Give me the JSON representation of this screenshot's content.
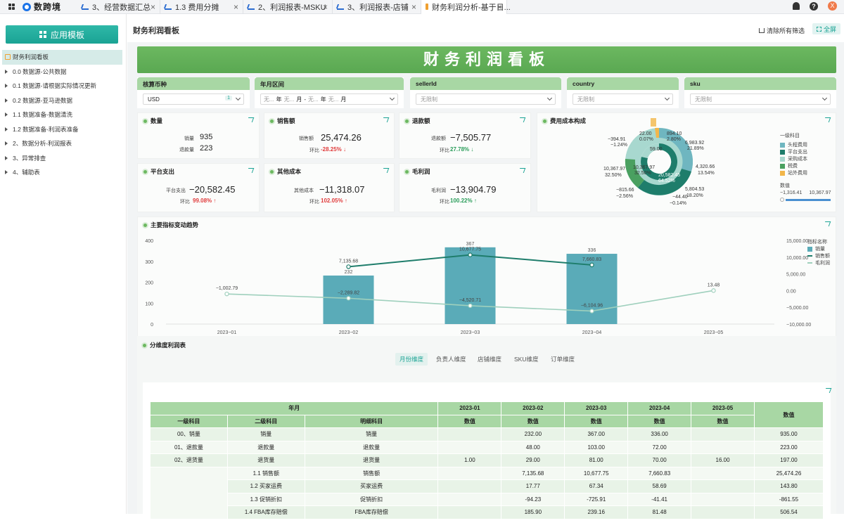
{
  "tabs": [
    {
      "label": "3、经营数据汇总",
      "icon": "line-chart-icon"
    },
    {
      "label": "1.3 费用分摊",
      "icon": "line-chart-icon"
    },
    {
      "label": "2、利润报表-MSKU",
      "icon": "line-chart-icon"
    },
    {
      "label": "3、利润报表-店铺",
      "icon": "line-chart-icon"
    },
    {
      "label": "财务利润分析-基于日...",
      "icon": "dashboard-icon"
    }
  ],
  "brand": "数跨境",
  "avatar_letter": "X",
  "sidebar": {
    "template_button": "应用模板",
    "items": [
      {
        "label": "财务利润看板"
      },
      {
        "label": "0.0 数据源-公共数据"
      },
      {
        "label": "0.1 数据源-请根据实际情况更新"
      },
      {
        "label": "0.2 数据源-亚马逊数据"
      },
      {
        "label": "1.1 数据准备-数据清洗"
      },
      {
        "label": "1.2 数据准备-利润表准备"
      },
      {
        "label": "2、数据分析-利润报表"
      },
      {
        "label": "3、异常排查"
      },
      {
        "label": "4、辅助表"
      }
    ]
  },
  "header": {
    "title": "财务利润看板",
    "clear_filters": "清除所有筛选",
    "fullscreen": "全屏"
  },
  "banner": "财务利润看板",
  "filters": {
    "currency": {
      "label": "核算币种",
      "value": "USD",
      "count": "1"
    },
    "month_range": {
      "label": "年月区间",
      "p1": "无...",
      "y1": "年",
      "p2": "无...",
      "m1": "月",
      "sep": "-",
      "p3": "无...",
      "y2": "年",
      "p4": "无...",
      "m2": "月"
    },
    "sellerid": {
      "label": "sellerId",
      "placeholder": "无限制"
    },
    "country": {
      "label": "country",
      "placeholder": "无限制"
    },
    "sku": {
      "label": "sku",
      "placeholder": "无限制"
    }
  },
  "kpi": {
    "qty": {
      "title": "数量",
      "l1": "销量",
      "v1": "935",
      "l2": "退款量",
      "v2": "223"
    },
    "sales": {
      "title": "销售额",
      "label": "销售额",
      "value": "25,474.26",
      "chg_label": "环比",
      "chg": "-28.25%"
    },
    "refund": {
      "title": "退款额",
      "label": "退款额",
      "value": "−7,505.77",
      "chg_label": "环比",
      "chg": "27.78%"
    },
    "platform": {
      "title": "平台支出",
      "label": "平台支出",
      "value": "−20,582.45",
      "chg_label": "环比",
      "chg": "99.08%"
    },
    "other": {
      "title": "其他成本",
      "label": "其他成本",
      "value": "−11,318.07",
      "chg_label": "环比",
      "chg": "102.05%"
    },
    "gross": {
      "title": "毛利润",
      "label": "毛利润",
      "value": "−13,904.79",
      "chg_label": "环比",
      "chg": "100.22%"
    }
  },
  "cost_chart": {
    "title": "费用成本构成",
    "legend_title": "一级科目",
    "legend": [
      {
        "name": "头程费用",
        "color": "#6fb6c0"
      },
      {
        "name": "平台支出",
        "color": "#1e7d6b"
      },
      {
        "name": "采购成本",
        "color": "#a8d8cf"
      },
      {
        "name": "税费",
        "color": "#4aa060"
      },
      {
        "name": "站外费用",
        "color": "#f2b64a"
      }
    ],
    "value_label": "数值",
    "range_min": "−1,316.41",
    "range_max": "10,367.97",
    "labels": [
      {
        "v": "22.00",
        "p": "0.07%"
      },
      {
        "v": "894.10",
        "p": "2.80%"
      },
      {
        "v": "−394.91",
        "p": "−1.24%"
      },
      {
        "v": "6,983.92",
        "p": "21.89%"
      },
      {
        "v": "4,320.66",
        "p": "13.54%"
      },
      {
        "v": "10,367.97",
        "p": "32.50%"
      },
      {
        "v": "10,367.97",
        "p": "32.50%"
      },
      {
        "v": "20,582.45",
        "p": "64.52%"
      },
      {
        "v": "5,804.53",
        "p": "18.20%"
      },
      {
        "v": "−815.66",
        "p": "−2.56%"
      },
      {
        "v": "−44.40",
        "p": "−0.14%"
      },
      {
        "v": "59.00",
        "p": ""
      }
    ]
  },
  "chart_data": {
    "type": "bar",
    "title": "主要指标变动趋势",
    "categories": [
      "2023−01",
      "2023−02",
      "2023−03",
      "2023−04",
      "2023−05"
    ],
    "legend_title": "指标名称",
    "y_left_ticks": [
      "400",
      "300",
      "200",
      "100",
      "0"
    ],
    "y_right_ticks": [
      "15,000.00",
      "10,000.00",
      "5,000.00",
      "0.00",
      "−5,000.00",
      "−10,000.00"
    ],
    "ylim_left": [
      0,
      400
    ],
    "ylim_right": [
      -10000,
      15000
    ],
    "series": [
      {
        "name": "销量",
        "type": "bar",
        "axis": "left",
        "color": "#5aabb8",
        "values": [
          null,
          232,
          367,
          336,
          null
        ],
        "labels": [
          "",
          "232",
          "367",
          "336",
          ""
        ]
      },
      {
        "name": "销售额",
        "type": "line",
        "axis": "right",
        "color": "#1e7d6b",
        "values": [
          null,
          7135.68,
          10677.75,
          7660.83,
          null
        ],
        "labels": [
          "",
          "7,135.68",
          "10,677.75",
          "7,660.83",
          ""
        ]
      },
      {
        "name": "毛利润",
        "type": "line",
        "axis": "right",
        "color": "#9fd0bd",
        "values": [
          -1002.79,
          -2289.82,
          -4520.71,
          -6104.96,
          13.48
        ],
        "labels": [
          "−1,002.79",
          "−2,289.82",
          "−4,520.71",
          "−6,104.96",
          "13.48"
        ]
      }
    ]
  },
  "dim_section": {
    "title": "分维度利润表",
    "tabs": [
      "月份维度",
      "负责人维度",
      "店铺维度",
      "SKU维度",
      "订单维度"
    ]
  },
  "table": {
    "h_month": "年月",
    "h_l1": "一级科目",
    "h_l2": "二级科目",
    "h_detail": "明细科目",
    "months": [
      "2023-01",
      "2023-02",
      "2023-03",
      "2023-04",
      "2023-05"
    ],
    "value": "数值",
    "rows": [
      {
        "l1": "00、销量",
        "l2": "销量",
        "d": "销量",
        "v": [
          "",
          "232.00",
          "367.00",
          "336.00",
          ""
        ],
        "t": "935.00"
      },
      {
        "l1": "01、退款量",
        "l2": "退款量",
        "d": "退款量",
        "v": [
          "",
          "48.00",
          "103.00",
          "72.00",
          ""
        ],
        "t": "223.00"
      },
      {
        "l1": "02、退货量",
        "l2": "退货量",
        "d": "退货量",
        "v": [
          "1.00",
          "29.00",
          "81.00",
          "70.00",
          "16.00"
        ],
        "t": "197.00"
      },
      {
        "l1": "",
        "l2": "1.1 销售额",
        "d": "销售额",
        "v": [
          "",
          "7,135.68",
          "10,677.75",
          "7,660.83",
          ""
        ],
        "t": "25,474.26"
      },
      {
        "l1": "",
        "l2": "1.2 买家运费",
        "d": "买家运费",
        "v": [
          "",
          "17.77",
          "67.34",
          "58.69",
          ""
        ],
        "t": "143.80"
      },
      {
        "l1": "",
        "l2": "1.3 促销折扣",
        "d": "促销折扣",
        "v": [
          "",
          "-94.23",
          "-725.91",
          "-41.41",
          ""
        ],
        "t": "-861.55"
      },
      {
        "l1": "",
        "l2": "1.4 FBA库存赔偿",
        "d": "FBA库存赔偿",
        "v": [
          "",
          "185.90",
          "239.16",
          "81.48",
          ""
        ],
        "t": "506.54"
      }
    ]
  }
}
